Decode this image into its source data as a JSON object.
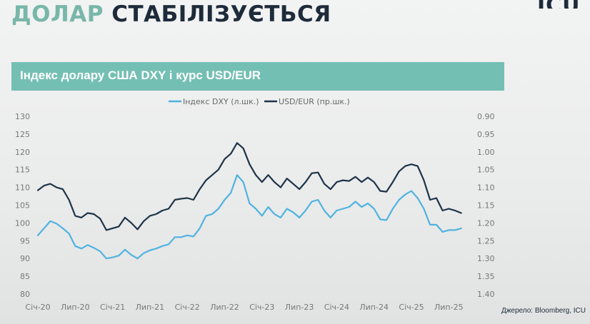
{
  "slide": {
    "title_part1": "ДОЛАР",
    "title_part2": "СТАБІЛІЗУЄТЬСЯ",
    "logo": "ICU",
    "source": "Джерело: Bloomberg, ICU"
  },
  "colors": {
    "accent": "#74bfb3",
    "title_light": "#78b7a9",
    "title_dark": "#1d2b3a",
    "series_dxy": "#4fb3e0",
    "series_usdeur": "#1d3347"
  },
  "chart_data": {
    "type": "line",
    "title": "Індекс долару США DXY і курс USD/EUR",
    "legend_position": "top-center",
    "grid": false,
    "x_ticks": [
      "Січ-20",
      "Лип-20",
      "Січ-21",
      "Лип-21",
      "Січ-22",
      "Лип-22",
      "Січ-23",
      "Лип-23",
      "Січ-24",
      "Лип-24",
      "Січ-25",
      "Лип-25"
    ],
    "y_left": {
      "min": 80,
      "max": 130,
      "step": 5,
      "ticks": [
        "130",
        "125",
        "120",
        "115",
        "110",
        "105",
        "100",
        "95",
        "90",
        "85",
        "80"
      ]
    },
    "y_right": {
      "min": 0.9,
      "max": 1.4,
      "inverted": true,
      "ticks": [
        "0.90",
        "0.95",
        "1.00",
        "1.05",
        "1.10",
        "1.15",
        "1.20",
        "1.25",
        "1.30",
        "1.35",
        "1.40"
      ]
    },
    "series": [
      {
        "name": "Індекс DXY (л.шк.)",
        "axis": "left",
        "points": [
          [
            "Січ-20",
            96.5
          ],
          [
            "Лют-20",
            98.5
          ],
          [
            "Бер-20",
            100.5
          ],
          [
            "Кві-20",
            99.8
          ],
          [
            "Тра-20",
            98.5
          ],
          [
            "Чер-20",
            97.0
          ],
          [
            "Лип-20",
            93.5
          ],
          [
            "Сер-20",
            92.8
          ],
          [
            "Вер-20",
            93.8
          ],
          [
            "Жов-20",
            93.0
          ],
          [
            "Лис-20",
            92.0
          ],
          [
            "Гру-20",
            90.0
          ],
          [
            "Січ-21",
            90.3
          ],
          [
            "Лют-21",
            90.8
          ],
          [
            "Бер-21",
            92.5
          ],
          [
            "Кві-21",
            91.0
          ],
          [
            "Тра-21",
            90.0
          ],
          [
            "Чер-21",
            91.5
          ],
          [
            "Лип-21",
            92.3
          ],
          [
            "Сер-21",
            92.8
          ],
          [
            "Вер-21",
            93.5
          ],
          [
            "Жов-21",
            94.0
          ],
          [
            "Лис-21",
            96.0
          ],
          [
            "Гру-21",
            96.0
          ],
          [
            "Січ-22",
            96.5
          ],
          [
            "Лют-22",
            96.2
          ],
          [
            "Бер-22",
            98.5
          ],
          [
            "Кві-22",
            102.0
          ],
          [
            "Тра-22",
            102.5
          ],
          [
            "Чер-22",
            104.0
          ],
          [
            "Лип-22",
            106.5
          ],
          [
            "Сер-22",
            108.5
          ],
          [
            "Вер-22",
            113.5
          ],
          [
            "Жов-22",
            111.5
          ],
          [
            "Лис-22",
            105.5
          ],
          [
            "Гру-22",
            104.0
          ],
          [
            "Січ-23",
            102.0
          ],
          [
            "Лют-23",
            104.5
          ],
          [
            "Бер-23",
            102.5
          ],
          [
            "Кві-23",
            101.5
          ],
          [
            "Тра-23",
            104.0
          ],
          [
            "Чер-23",
            103.0
          ],
          [
            "Лип-23",
            101.5
          ],
          [
            "Сер-23",
            103.5
          ],
          [
            "Вер-23",
            106.0
          ],
          [
            "Жов-23",
            106.5
          ],
          [
            "Лис-23",
            103.5
          ],
          [
            "Гру-23",
            101.5
          ],
          [
            "Січ-24",
            103.5
          ],
          [
            "Лют-24",
            104.0
          ],
          [
            "Бер-24",
            104.5
          ],
          [
            "Кві-24",
            106.0
          ],
          [
            "Тра-24",
            104.5
          ],
          [
            "Чер-24",
            105.5
          ],
          [
            "Лип-24",
            104.0
          ],
          [
            "Сер-24",
            101.0
          ],
          [
            "Вер-24",
            100.8
          ],
          [
            "Жов-24",
            104.0
          ],
          [
            "Лис-24",
            106.5
          ],
          [
            "Гру-24",
            108.0
          ],
          [
            "Січ-25",
            109.0
          ],
          [
            "Лют-25",
            107.0
          ],
          [
            "Бер-25",
            104.0
          ],
          [
            "Кві-25",
            99.5
          ],
          [
            "Тра-25",
            99.5
          ],
          [
            "Чер-25",
            97.5
          ],
          [
            "Лип-25",
            98.0
          ],
          [
            "Сер-25",
            98.0
          ],
          [
            "Вер-25",
            98.5
          ]
        ]
      },
      {
        "name": "USD/EUR (пр.шк.)",
        "axis": "right",
        "points": [
          [
            "Січ-20",
            1.108
          ],
          [
            "Лют-20",
            1.095
          ],
          [
            "Бер-20",
            1.09
          ],
          [
            "Кві-20",
            1.1
          ],
          [
            "Тра-20",
            1.105
          ],
          [
            "Чер-20",
            1.135
          ],
          [
            "Лип-20",
            1.18
          ],
          [
            "Сер-20",
            1.185
          ],
          [
            "Вер-20",
            1.172
          ],
          [
            "Жов-20",
            1.175
          ],
          [
            "Лис-20",
            1.188
          ],
          [
            "Гру-20",
            1.22
          ],
          [
            "Січ-21",
            1.215
          ],
          [
            "Лют-21",
            1.21
          ],
          [
            "Бер-21",
            1.185
          ],
          [
            "Кві-21",
            1.2
          ],
          [
            "Тра-21",
            1.218
          ],
          [
            "Чер-21",
            1.195
          ],
          [
            "Лип-21",
            1.18
          ],
          [
            "Сер-21",
            1.175
          ],
          [
            "Вер-21",
            1.165
          ],
          [
            "Жов-21",
            1.16
          ],
          [
            "Лис-21",
            1.135
          ],
          [
            "Гру-21",
            1.132
          ],
          [
            "Січ-22",
            1.13
          ],
          [
            "Лют-22",
            1.135
          ],
          [
            "Бер-22",
            1.105
          ],
          [
            "Кві-22",
            1.08
          ],
          [
            "Тра-22",
            1.065
          ],
          [
            "Чер-22",
            1.05
          ],
          [
            "Лип-22",
            1.02
          ],
          [
            "Сер-22",
            1.005
          ],
          [
            "Вер-22",
            0.975
          ],
          [
            "Жов-22",
            0.99
          ],
          [
            "Лис-22",
            1.035
          ],
          [
            "Гру-22",
            1.065
          ],
          [
            "Січ-23",
            1.085
          ],
          [
            "Лют-23",
            1.065
          ],
          [
            "Бер-23",
            1.085
          ],
          [
            "Кві-23",
            1.1
          ],
          [
            "Тра-23",
            1.075
          ],
          [
            "Чер-23",
            1.09
          ],
          [
            "Лип-23",
            1.105
          ],
          [
            "Сер-23",
            1.085
          ],
          [
            "Вер-23",
            1.06
          ],
          [
            "Жов-23",
            1.058
          ],
          [
            "Лис-23",
            1.09
          ],
          [
            "Гру-23",
            1.105
          ],
          [
            "Січ-24",
            1.085
          ],
          [
            "Лют-24",
            1.08
          ],
          [
            "Бер-24",
            1.082
          ],
          [
            "Кві-24",
            1.07
          ],
          [
            "Тра-24",
            1.085
          ],
          [
            "Чер-24",
            1.072
          ],
          [
            "Лип-24",
            1.085
          ],
          [
            "Сер-24",
            1.11
          ],
          [
            "Вер-24",
            1.112
          ],
          [
            "Жов-24",
            1.085
          ],
          [
            "Лис-24",
            1.055
          ],
          [
            "Гру-24",
            1.04
          ],
          [
            "Січ-25",
            1.035
          ],
          [
            "Лют-25",
            1.04
          ],
          [
            "Бер-25",
            1.08
          ],
          [
            "Кві-25",
            1.135
          ],
          [
            "Тра-25",
            1.13
          ],
          [
            "Чер-25",
            1.165
          ],
          [
            "Лип-25",
            1.16
          ],
          [
            "Сер-25",
            1.165
          ],
          [
            "Вер-25",
            1.172
          ]
        ]
      }
    ]
  }
}
